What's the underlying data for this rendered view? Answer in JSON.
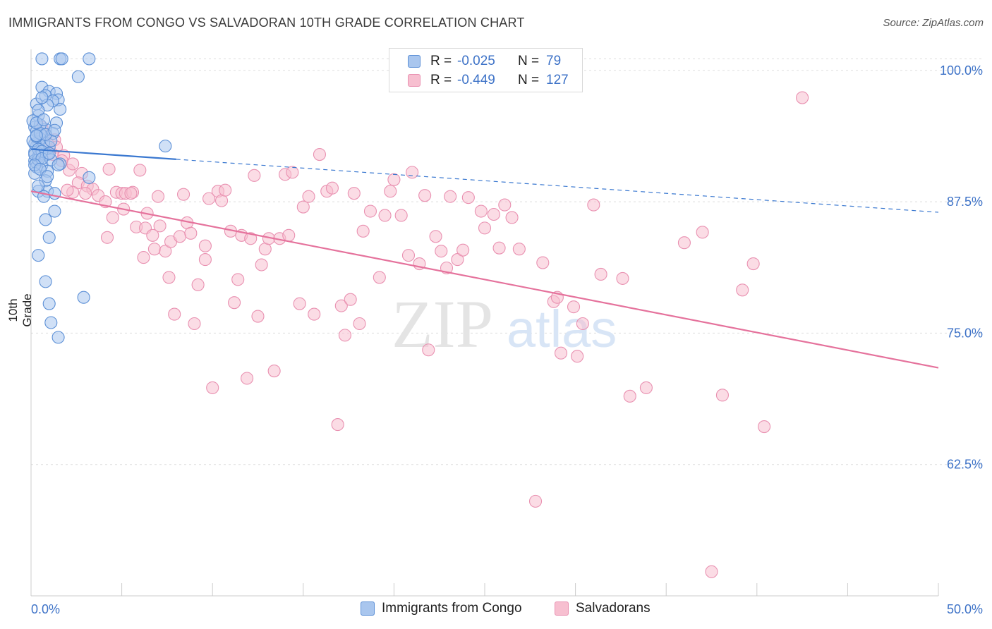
{
  "header": {
    "title": "IMMIGRANTS FROM CONGO VS SALVADORAN 10TH GRADE CORRELATION CHART",
    "source": "Source: ZipAtlas.com"
  },
  "watermark": {
    "zip": "ZIP",
    "atlas": "atlas"
  },
  "legend_top": {
    "rows": [
      {
        "r_label": "R =",
        "r_value": "-0.025",
        "n_label": "N =",
        "n_value": "79"
      },
      {
        "r_label": "R =",
        "r_value": "-0.449",
        "n_label": "N =",
        "n_value": "127"
      }
    ]
  },
  "legend_bottom": {
    "items": [
      {
        "label": "Immigrants from Congo"
      },
      {
        "label": "Salvadorans"
      }
    ]
  },
  "colors": {
    "congo_fill": "#a9c6ee",
    "congo_stroke": "#5b8fd6",
    "congo_line": "#3a78d0",
    "salv_fill": "#f7bfd0",
    "salv_stroke": "#e991b1",
    "salv_line": "#e5729c",
    "axis_label": "#3d72c7",
    "grid": "#dddddd"
  },
  "chart_data": {
    "type": "scatter",
    "title": "IMMIGRANTS FROM CONGO VS SALVADORAN 10TH GRADE CORRELATION CHART",
    "xlabel": "",
    "ylabel": "10th Grade",
    "xlim": [
      0,
      50
    ],
    "ylim": [
      50,
      102
    ],
    "x_tick_labels": [
      "0.0%",
      "50.0%"
    ],
    "y_ticks": [
      62.5,
      75.0,
      87.5,
      100.0
    ],
    "y_tick_labels": [
      "62.5%",
      "75.0%",
      "87.5%",
      "100.0%"
    ],
    "grid": true,
    "legend_position": "top-center",
    "series": [
      {
        "name": "Immigrants from Congo",
        "trend": {
          "x": [
            0,
            50
          ],
          "y": [
            92.5,
            86.5
          ],
          "solid_until_x": 8
        },
        "points": [
          [
            0.6,
            101.1
          ],
          [
            1.6,
            101.1
          ],
          [
            1.7,
            101.1
          ],
          [
            3.2,
            101.1
          ],
          [
            2.6,
            99.4
          ],
          [
            0.6,
            98.4
          ],
          [
            1.0,
            98.0
          ],
          [
            1.4,
            97.8
          ],
          [
            0.8,
            97.6
          ],
          [
            1.5,
            97.2
          ],
          [
            0.3,
            96.8
          ],
          [
            1.6,
            96.3
          ],
          [
            0.4,
            95.7
          ],
          [
            1.4,
            95.0
          ],
          [
            0.2,
            94.6
          ],
          [
            0.8,
            94.4
          ],
          [
            0.3,
            94.2
          ],
          [
            1.2,
            94.0
          ],
          [
            0.6,
            93.8
          ],
          [
            0.5,
            93.5
          ],
          [
            0.4,
            93.2
          ],
          [
            0.3,
            92.8
          ],
          [
            1.0,
            92.7
          ],
          [
            0.5,
            92.4
          ],
          [
            0.2,
            92.2
          ],
          [
            0.9,
            92.0
          ],
          [
            0.4,
            91.8
          ],
          [
            0.2,
            91.4
          ],
          [
            0.3,
            91.2
          ],
          [
            0.6,
            91.0
          ],
          [
            1.6,
            91.1
          ],
          [
            0.3,
            90.8
          ],
          [
            0.9,
            90.4
          ],
          [
            0.2,
            90.2
          ],
          [
            3.2,
            89.8
          ],
          [
            0.8,
            89.5
          ],
          [
            0.4,
            88.5
          ],
          [
            0.9,
            88.5
          ],
          [
            1.3,
            88.3
          ],
          [
            0.7,
            88.0
          ],
          [
            1.3,
            86.6
          ],
          [
            0.8,
            85.8
          ],
          [
            1.0,
            84.1
          ],
          [
            0.4,
            82.4
          ],
          [
            0.8,
            79.9
          ],
          [
            2.9,
            78.4
          ],
          [
            1.0,
            77.8
          ],
          [
            1.1,
            76.0
          ],
          [
            1.5,
            74.6
          ],
          [
            7.4,
            92.8
          ],
          [
            0.2,
            93.0
          ],
          [
            0.5,
            94.8
          ],
          [
            0.1,
            93.3
          ],
          [
            1.1,
            91.5
          ],
          [
            0.7,
            93.1
          ],
          [
            0.4,
            91.5
          ],
          [
            1.5,
            91.0
          ],
          [
            0.3,
            93.7
          ],
          [
            1.2,
            97.1
          ],
          [
            0.1,
            95.2
          ],
          [
            1.1,
            93.3
          ],
          [
            0.4,
            92.5
          ],
          [
            0.6,
            92.3
          ],
          [
            0.2,
            92.0
          ],
          [
            0.9,
            96.7
          ],
          [
            0.5,
            94.0
          ],
          [
            0.3,
            95.0
          ],
          [
            0.8,
            93.9
          ],
          [
            0.4,
            96.2
          ],
          [
            0.6,
            91.6
          ],
          [
            1.0,
            92.1
          ],
          [
            0.2,
            91.0
          ],
          [
            0.7,
            95.3
          ],
          [
            0.5,
            90.6
          ],
          [
            1.3,
            94.3
          ],
          [
            0.9,
            89.9
          ],
          [
            0.6,
            97.4
          ],
          [
            0.3,
            93.8
          ],
          [
            0.4,
            89.0
          ]
        ]
      },
      {
        "name": "Salvadorans",
        "trend": {
          "x": [
            0,
            50
          ],
          "y": [
            88.5,
            71.7
          ]
        },
        "points": [
          [
            0.6,
            94.6
          ],
          [
            0.8,
            93.9
          ],
          [
            1.3,
            93.4
          ],
          [
            0.9,
            93.1
          ],
          [
            1.4,
            92.7
          ],
          [
            1.2,
            92.0
          ],
          [
            1.8,
            91.9
          ],
          [
            1.7,
            91.4
          ],
          [
            2.1,
            90.5
          ],
          [
            2.3,
            91.1
          ],
          [
            2.8,
            90.2
          ],
          [
            2.6,
            89.3
          ],
          [
            3.1,
            89.0
          ],
          [
            2.3,
            88.4
          ],
          [
            2.0,
            88.6
          ],
          [
            3.4,
            88.7
          ],
          [
            3.0,
            88.3
          ],
          [
            3.7,
            88.1
          ],
          [
            4.1,
            87.5
          ],
          [
            4.2,
            84.1
          ],
          [
            4.3,
            90.6
          ],
          [
            4.5,
            86.0
          ],
          [
            4.7,
            88.4
          ],
          [
            5.0,
            88.3
          ],
          [
            5.2,
            88.3
          ],
          [
            5.6,
            88.4
          ],
          [
            5.1,
            86.8
          ],
          [
            5.5,
            88.3
          ],
          [
            5.8,
            85.1
          ],
          [
            6.0,
            90.5
          ],
          [
            6.3,
            85.0
          ],
          [
            6.4,
            86.4
          ],
          [
            6.2,
            82.2
          ],
          [
            6.7,
            84.3
          ],
          [
            6.8,
            83.0
          ],
          [
            7.0,
            88.0
          ],
          [
            7.1,
            85.2
          ],
          [
            7.4,
            82.8
          ],
          [
            7.6,
            80.3
          ],
          [
            7.7,
            83.7
          ],
          [
            7.9,
            76.8
          ],
          [
            8.2,
            84.2
          ],
          [
            8.4,
            88.2
          ],
          [
            8.6,
            85.5
          ],
          [
            8.8,
            84.5
          ],
          [
            9.0,
            75.9
          ],
          [
            9.2,
            79.6
          ],
          [
            9.6,
            83.3
          ],
          [
            9.6,
            82.0
          ],
          [
            9.8,
            87.8
          ],
          [
            10.0,
            69.8
          ],
          [
            10.3,
            88.5
          ],
          [
            10.5,
            87.6
          ],
          [
            10.7,
            88.6
          ],
          [
            11.0,
            84.7
          ],
          [
            11.2,
            77.9
          ],
          [
            11.4,
            80.1
          ],
          [
            11.6,
            84.3
          ],
          [
            11.9,
            70.7
          ],
          [
            12.1,
            84.0
          ],
          [
            12.3,
            90.0
          ],
          [
            12.5,
            76.6
          ],
          [
            12.7,
            81.5
          ],
          [
            12.9,
            83.0
          ],
          [
            13.1,
            84.0
          ],
          [
            13.4,
            71.4
          ],
          [
            13.7,
            84.0
          ],
          [
            14.0,
            90.1
          ],
          [
            14.2,
            84.3
          ],
          [
            14.4,
            90.3
          ],
          [
            14.8,
            77.8
          ],
          [
            15.0,
            87.0
          ],
          [
            15.3,
            88.0
          ],
          [
            15.6,
            76.8
          ],
          [
            15.9,
            92.0
          ],
          [
            16.3,
            88.5
          ],
          [
            16.6,
            88.8
          ],
          [
            16.9,
            66.3
          ],
          [
            17.1,
            77.6
          ],
          [
            17.3,
            74.8
          ],
          [
            17.6,
            78.2
          ],
          [
            17.8,
            88.3
          ],
          [
            18.1,
            75.9
          ],
          [
            18.3,
            84.7
          ],
          [
            18.7,
            86.6
          ],
          [
            19.2,
            80.3
          ],
          [
            19.5,
            86.2
          ],
          [
            19.8,
            88.5
          ],
          [
            20.0,
            89.6
          ],
          [
            20.4,
            86.2
          ],
          [
            20.8,
            82.4
          ],
          [
            21.0,
            90.3
          ],
          [
            21.4,
            81.6
          ],
          [
            21.7,
            88.1
          ],
          [
            21.9,
            73.4
          ],
          [
            22.3,
            84.2
          ],
          [
            22.6,
            82.8
          ],
          [
            22.9,
            81.2
          ],
          [
            23.1,
            88.0
          ],
          [
            23.5,
            82.0
          ],
          [
            23.8,
            82.9
          ],
          [
            24.1,
            87.9
          ],
          [
            24.8,
            86.6
          ],
          [
            25.0,
            85.0
          ],
          [
            25.5,
            86.3
          ],
          [
            25.8,
            83.1
          ],
          [
            26.1,
            87.2
          ],
          [
            26.5,
            86.0
          ],
          [
            26.9,
            83.0
          ],
          [
            27.8,
            59.0
          ],
          [
            28.2,
            81.7
          ],
          [
            28.8,
            78.0
          ],
          [
            29.0,
            78.4
          ],
          [
            29.2,
            73.1
          ],
          [
            29.9,
            77.5
          ],
          [
            30.1,
            72.8
          ],
          [
            30.4,
            75.9
          ],
          [
            31.0,
            87.2
          ],
          [
            31.4,
            80.6
          ],
          [
            32.6,
            80.2
          ],
          [
            33.0,
            69.0
          ],
          [
            33.9,
            69.8
          ],
          [
            36.0,
            83.6
          ],
          [
            37.0,
            84.6
          ],
          [
            37.5,
            52.3
          ],
          [
            38.1,
            69.1
          ],
          [
            39.2,
            79.1
          ],
          [
            39.8,
            81.6
          ],
          [
            40.4,
            66.1
          ],
          [
            42.5,
            97.4
          ]
        ]
      }
    ]
  }
}
